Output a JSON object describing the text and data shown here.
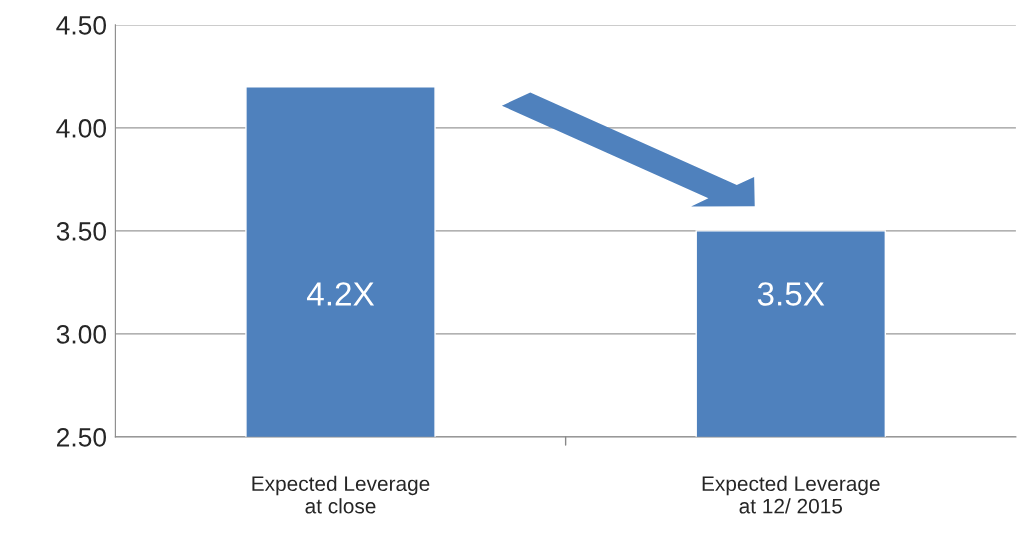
{
  "chart_data": {
    "type": "bar",
    "categories": [
      "Expected Leverage\nat close",
      "Expected Leverage\nat 12/ 2015"
    ],
    "values": [
      4.2,
      3.5
    ],
    "color": "#4f81bd",
    "value_labels": [
      "4.2X",
      "3.5X"
    ],
    "ylim": [
      2.5,
      4.5
    ],
    "yticks": [
      {
        "value": 2.5,
        "label": "2.50"
      },
      {
        "value": 3.0,
        "label": "3.00"
      },
      {
        "value": 3.5,
        "label": "3.50"
      },
      {
        "value": 4.0,
        "label": "4.00"
      },
      {
        "value": 4.5,
        "label": "4.50"
      }
    ],
    "grid": "y",
    "legend": false
  }
}
